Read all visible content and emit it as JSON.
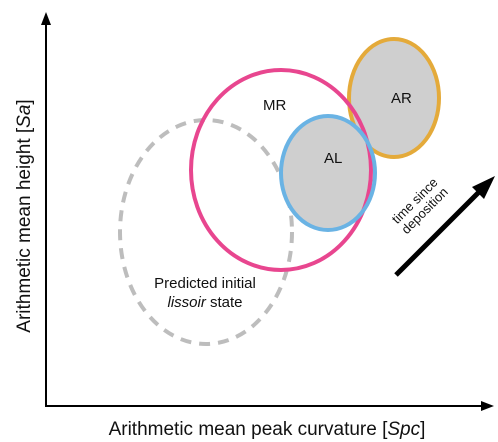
{
  "axes": {
    "x_label_prefix": "Arithmetic mean peak curvature [",
    "x_label_symbol": "Spc",
    "x_label_suffix": "]",
    "y_label_prefix": "Arithmetic mean height [",
    "y_label_symbol": "Sa",
    "y_label_suffix": "]"
  },
  "regions": {
    "mr": {
      "label": "MR",
      "color": "#e8468f"
    },
    "al": {
      "label": "AL",
      "color": "#6ab3e4"
    },
    "ar": {
      "label": "AR",
      "color": "#e4aa3a"
    },
    "predicted": {
      "label_line1": "Predicted initial",
      "label_line2_italic": "lissoir",
      "label_line2_rest": " state",
      "color": "#bdbdbd"
    }
  },
  "time_arrow": {
    "line1": "time since",
    "line2": "deposition"
  },
  "colors": {
    "fill": "#cfcfcf",
    "axis": "#000000"
  }
}
